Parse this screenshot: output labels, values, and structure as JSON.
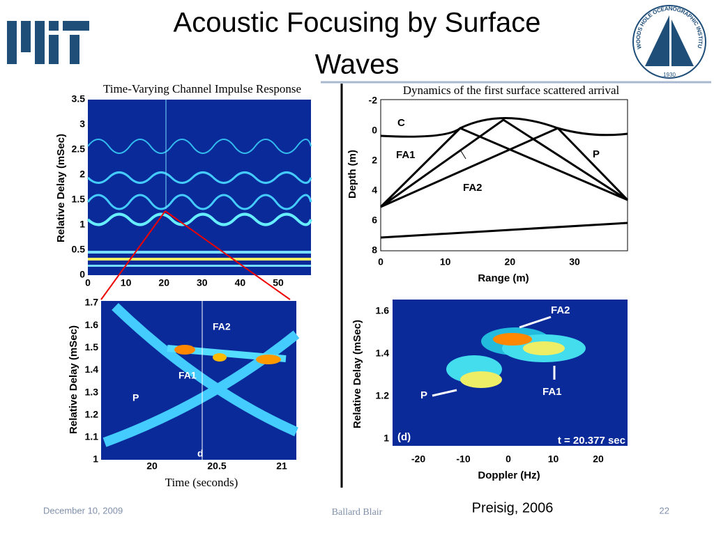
{
  "header": {
    "title_line1": "Acoustic Focusing by Surface",
    "title_line2": "Waves"
  },
  "logo": {
    "whoi": "WOODS HOLE OCEANOGRAPHIC INSTITUTION",
    "year": "1930"
  },
  "panels": {
    "top_left": {
      "caption": "Time-Varying Channel Impulse Response",
      "y_label": "Relative Delay (mSec)",
      "yticks": [
        "3.5",
        "3",
        "2.5",
        "2",
        "1.5",
        "1",
        "0.5",
        "0"
      ],
      "xticks": [
        "0",
        "10",
        "20",
        "30",
        "40",
        "50"
      ]
    },
    "bottom_left": {
      "caption": "Time (seconds)",
      "y_label": "Relative Delay (mSec)",
      "yticks": [
        "1.7",
        "1.6",
        "1.5",
        "1.4",
        "1.3",
        "1.2",
        "1.1",
        "1"
      ],
      "xticks": [
        "20",
        "20.5",
        "21"
      ],
      "annotations": [
        "FA2",
        "FA1",
        "P",
        "d"
      ]
    },
    "top_right": {
      "caption": "Dynamics of the first surface scattered arrival",
      "y_label": "Depth (m)",
      "x_label": "Range (m)",
      "yticks": [
        "-2",
        "0",
        "2",
        "4",
        "6",
        "8"
      ],
      "xticks": [
        "0",
        "10",
        "20",
        "30"
      ],
      "annotations": [
        "C",
        "FA1",
        "FA2",
        "P"
      ]
    },
    "bottom_right": {
      "y_label": "Relative Delay (mSec)",
      "x_label": "Doppler (Hz)",
      "yticks": [
        "1.6",
        "1.4",
        "1.2",
        "1"
      ],
      "xticks": [
        "-20",
        "-10",
        "0",
        "10",
        "20"
      ],
      "annotations": [
        "FA2",
        "FA1",
        "P",
        "(d)",
        "t = 20.377 sec"
      ]
    }
  },
  "footer": {
    "date": "December 10, 2009",
    "author": "Ballard Blair",
    "citation": "Preisig, 2006",
    "page": "22"
  }
}
